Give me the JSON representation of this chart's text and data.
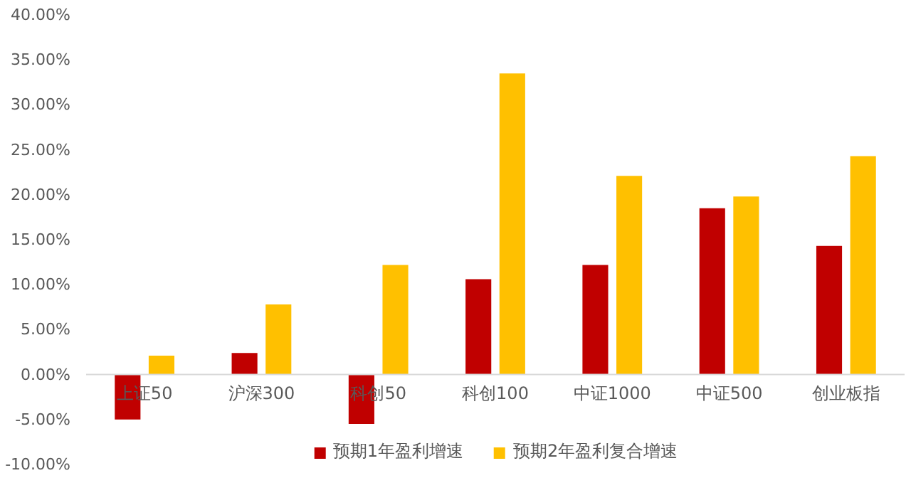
{
  "chart_data": {
    "type": "bar",
    "categories": [
      "上证50",
      "沪深300",
      "科创50",
      "科创100",
      "中证1000",
      "中证500",
      "创业板指"
    ],
    "series": [
      {
        "name": "预期1年盈利增速",
        "color": "#c00000",
        "values": [
          -5.0,
          2.4,
          -5.5,
          10.6,
          12.2,
          18.5,
          14.3
        ]
      },
      {
        "name": "预期2年盈利复合增速",
        "color": "#ffc000",
        "values": [
          2.1,
          7.8,
          12.2,
          33.5,
          22.1,
          19.8,
          24.3
        ]
      }
    ],
    "ylim": [
      -10,
      40
    ],
    "yticks": [
      {
        "value": -10,
        "label": "-10.00%"
      },
      {
        "value": -5,
        "label": "-5.00%"
      },
      {
        "value": 0,
        "label": "0.00%"
      },
      {
        "value": 5,
        "label": "5.00%"
      },
      {
        "value": 10,
        "label": "10.00%"
      },
      {
        "value": 15,
        "label": "15.00%"
      },
      {
        "value": 20,
        "label": "20.00%"
      },
      {
        "value": 25,
        "label": "25.00%"
      },
      {
        "value": 30,
        "label": "30.00%"
      },
      {
        "value": 35,
        "label": "35.00%"
      },
      {
        "value": 40,
        "label": "40.00%"
      }
    ],
    "legend": "bottom",
    "grid": false
  }
}
